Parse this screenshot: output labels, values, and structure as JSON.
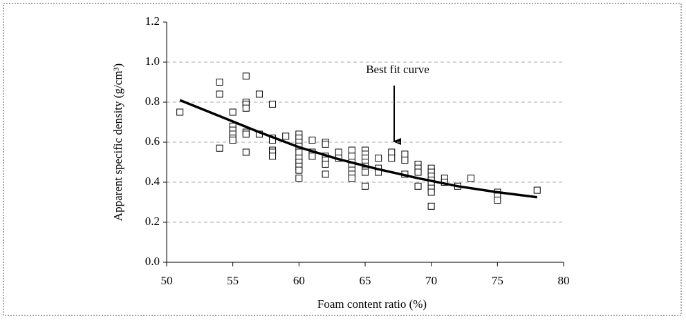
{
  "chart_data": {
    "type": "scatter",
    "xlabel": "Foam content ratio (%)",
    "ylabel": "Apparent specific density (g/cm³)",
    "annotation": "Best fit curve",
    "marker": "square",
    "color": "#000000",
    "grid": true,
    "xlim": [
      50,
      80
    ],
    "xticks": [
      50,
      55,
      60,
      65,
      70,
      75,
      80
    ],
    "ylim": [
      0,
      1.2
    ],
    "yticks": [
      {
        "value": 0,
        "label": "0.0"
      },
      {
        "value": 0.2,
        "label": "0.2"
      },
      {
        "value": 0.4,
        "label": "0.4"
      },
      {
        "value": 0.6,
        "label": "0.6"
      },
      {
        "value": 0.8,
        "label": "0.8"
      },
      {
        "value": 1.0,
        "label": "1.0"
      },
      {
        "value": 1.2,
        "label": "1.2"
      }
    ],
    "x": [
      51,
      54,
      54,
      54,
      55,
      55,
      55,
      55,
      55,
      55,
      56,
      56,
      56,
      56,
      56,
      56,
      56,
      57,
      57,
      58,
      58,
      58,
      58,
      58,
      58,
      59,
      60,
      60,
      60,
      60,
      60,
      60,
      60,
      60,
      60,
      60,
      61,
      61,
      61,
      62,
      62,
      62,
      62,
      62,
      62,
      63,
      63,
      64,
      64,
      64,
      64,
      64,
      64,
      64,
      65,
      65,
      65,
      65,
      65,
      65,
      65,
      65,
      66,
      66,
      66,
      67,
      67,
      68,
      68,
      68,
      69,
      69,
      69,
      69,
      70,
      70,
      70,
      70,
      70,
      70,
      70,
      70,
      71,
      71,
      72,
      73,
      75,
      75,
      75,
      78
    ],
    "values": [
      0.75,
      0.9,
      0.84,
      0.57,
      0.75,
      0.68,
      0.66,
      0.64,
      0.62,
      0.61,
      0.93,
      0.8,
      0.79,
      0.77,
      0.65,
      0.64,
      0.55,
      0.84,
      0.64,
      0.79,
      0.62,
      0.61,
      0.56,
      0.55,
      0.53,
      0.63,
      0.64,
      0.62,
      0.6,
      0.58,
      0.55,
      0.52,
      0.5,
      0.48,
      0.46,
      0.42,
      0.61,
      0.55,
      0.53,
      0.6,
      0.59,
      0.53,
      0.51,
      0.49,
      0.44,
      0.55,
      0.52,
      0.56,
      0.53,
      0.5,
      0.48,
      0.46,
      0.44,
      0.42,
      0.56,
      0.54,
      0.52,
      0.5,
      0.48,
      0.46,
      0.45,
      0.38,
      0.52,
      0.47,
      0.45,
      0.55,
      0.52,
      0.54,
      0.51,
      0.44,
      0.49,
      0.47,
      0.45,
      0.38,
      0.47,
      0.45,
      0.43,
      0.41,
      0.39,
      0.37,
      0.35,
      0.28,
      0.42,
      0.4,
      0.38,
      0.42,
      0.35,
      0.33,
      0.31,
      0.36
    ],
    "fit_curve": {
      "color": "#000000",
      "x": [
        51,
        54,
        57,
        60,
        63,
        66,
        69,
        72,
        75,
        78
      ],
      "values": [
        0.81,
        0.73,
        0.65,
        0.575,
        0.515,
        0.465,
        0.42,
        0.38,
        0.35,
        0.325
      ]
    }
  }
}
